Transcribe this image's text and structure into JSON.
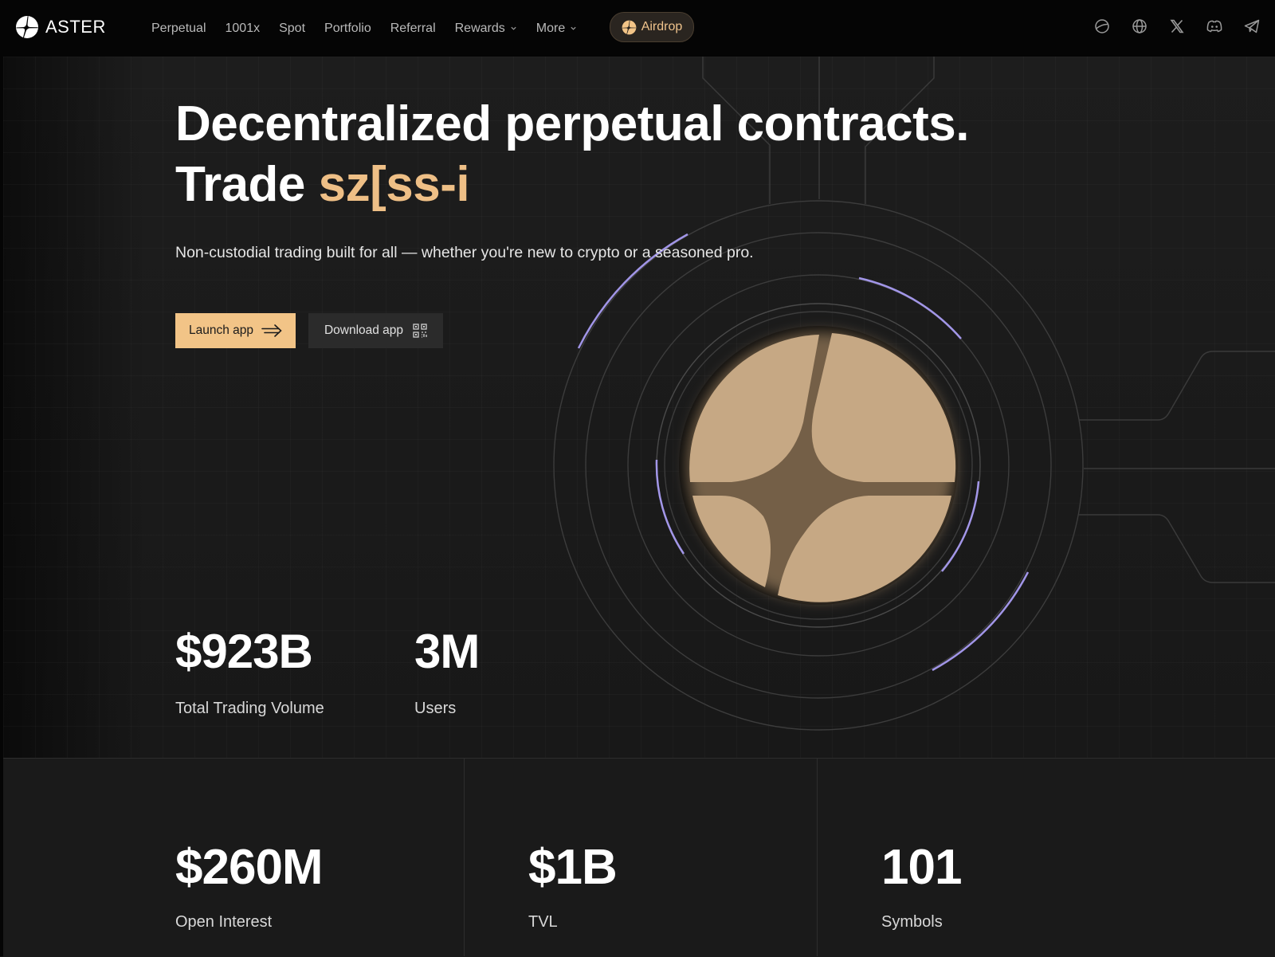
{
  "nav": {
    "brand": "ASTER",
    "links": [
      {
        "label": "Perpetual",
        "has_dropdown": false
      },
      {
        "label": "1001x",
        "has_dropdown": false
      },
      {
        "label": "Spot",
        "has_dropdown": false
      },
      {
        "label": "Portfolio",
        "has_dropdown": false
      },
      {
        "label": "Referral",
        "has_dropdown": false
      },
      {
        "label": "Rewards",
        "has_dropdown": true
      },
      {
        "label": "More",
        "has_dropdown": true
      }
    ],
    "airdrop_label": "Airdrop",
    "icons": [
      "planet-icon",
      "globe-icon",
      "x-twitter-icon",
      "discord-icon",
      "telegram-icon"
    ]
  },
  "hero": {
    "headline_line1": "Decentralized perpetual contracts.",
    "headline_line2_prefix": "Trade ",
    "headline_line2_accent": "sz[ss-i",
    "subtext": "Non-custodial trading built for all — whether you're new to crypto or a seasoned pro.",
    "launch_label": "Launch app",
    "download_label": "Download app"
  },
  "stats": {
    "volume": {
      "value": "$923B",
      "label": "Total Trading Volume"
    },
    "users": {
      "value": "3M",
      "label": "Users"
    },
    "open_interest": {
      "value": "$260M",
      "label": "Open Interest"
    },
    "tvl": {
      "value": "$1B",
      "label": "TVL"
    },
    "symbols": {
      "value": "101",
      "label": "Symbols"
    }
  },
  "colors": {
    "accent": "#f2c487",
    "accent_text": "#eebf86",
    "logo_tan": "#c6a884",
    "ring_glow": "#a99cf2",
    "background": "#141414"
  }
}
